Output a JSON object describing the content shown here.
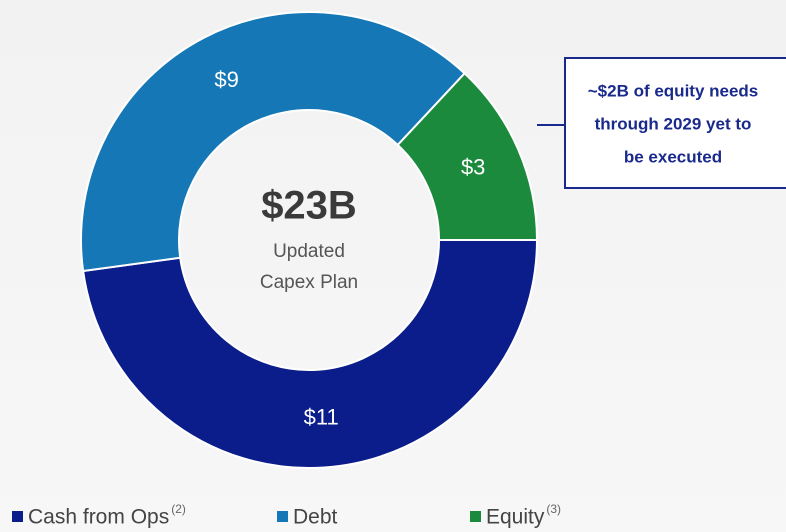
{
  "chart_data": {
    "type": "pie",
    "categories": [
      "Cash from Ops",
      "Debt",
      "Equity"
    ],
    "values": [
      11,
      9,
      3
    ],
    "value_labels": [
      "$11",
      "$9",
      "$3"
    ],
    "colors": [
      "#0b1d8a",
      "#1577b5",
      "#1c8a3c"
    ],
    "legend_notes": [
      "(2)",
      null,
      "(3)"
    ],
    "center_label": "$23B",
    "center_caption": [
      "Updated",
      "Capex Plan"
    ],
    "annotation": [
      "~$2B of equity needs",
      "through 2029 yet to",
      "be executed"
    ]
  }
}
